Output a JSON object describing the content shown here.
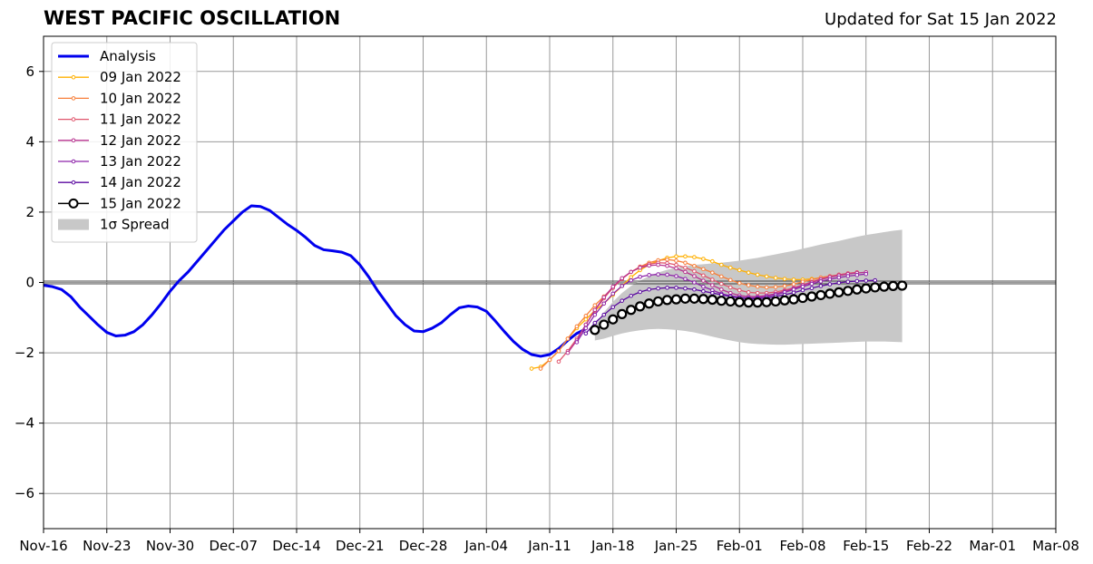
{
  "title": "WEST PACIFIC OSCILLATION",
  "updated": "Updated for Sat 15 Jan 2022",
  "chart_data": {
    "type": "line",
    "xlabel": "",
    "ylabel": "",
    "x_range": [
      "2021-11-16",
      "2022-03-08"
    ],
    "ylim": [
      -7,
      7
    ],
    "yticks": [
      -6,
      -4,
      -2,
      0,
      2,
      4,
      6
    ],
    "ytick_labels": [
      "−6",
      "−4",
      "−2",
      "0",
      "2",
      "4",
      "6"
    ],
    "xticks": [
      "2021-11-16",
      "2021-11-23",
      "2021-11-30",
      "2021-12-07",
      "2021-12-14",
      "2021-12-21",
      "2021-12-28",
      "2022-01-04",
      "2022-01-11",
      "2022-01-18",
      "2022-01-25",
      "2022-02-01",
      "2022-02-08",
      "2022-02-15",
      "2022-02-22",
      "2022-03-01",
      "2022-03-08"
    ],
    "xtick_labels": [
      "Nov-16",
      "Nov-23",
      "Nov-30",
      "Dec-07",
      "Dec-14",
      "Dec-21",
      "Dec-28",
      "Jan-04",
      "Jan-11",
      "Jan-18",
      "Jan-25",
      "Feb-01",
      "Feb-08",
      "Feb-15",
      "Feb-22",
      "Mar-01",
      "Mar-08"
    ],
    "grid": true,
    "legend_position": "top-left",
    "zero_line": 0,
    "analysis": {
      "name": "Analysis",
      "color": "#0000ee",
      "start": "2021-11-16",
      "values": [
        -0.08,
        -0.12,
        -0.2,
        -0.4,
        -0.7,
        -0.95,
        -1.2,
        -1.42,
        -1.52,
        -1.5,
        -1.4,
        -1.2,
        -0.92,
        -0.6,
        -0.25,
        0.05,
        0.3,
        0.6,
        0.9,
        1.2,
        1.5,
        1.75,
        2.0,
        2.18,
        2.16,
        2.05,
        1.85,
        1.65,
        1.48,
        1.28,
        1.05,
        0.93,
        0.9,
        0.86,
        0.76,
        0.5,
        0.15,
        -0.25,
        -0.6,
        -0.95,
        -1.2,
        -1.38,
        -1.4,
        -1.3,
        -1.15,
        -0.92,
        -0.72,
        -0.67,
        -0.7,
        -0.82,
        -1.1,
        -1.4,
        -1.68,
        -1.9,
        -2.05,
        -2.1,
        -2.05,
        -1.88,
        -1.65,
        -1.45,
        -1.32
      ]
    },
    "forecasts": [
      {
        "name": "09 Jan 2022",
        "color": "#ffb000",
        "start": "2022-01-09",
        "values": [
          -2.45,
          -2.4,
          -2.2,
          -1.95,
          -1.6,
          -1.3,
          -1.05,
          -0.8,
          -0.6,
          -0.35,
          -0.1,
          0.15,
          0.35,
          0.5,
          0.62,
          0.7,
          0.74,
          0.74,
          0.72,
          0.67,
          0.6,
          0.5,
          0.42,
          0.35,
          0.28,
          0.22,
          0.17,
          0.13,
          0.1,
          0.08,
          0.08,
          0.1,
          0.13,
          0.16,
          0.2,
          0.24,
          0.28
        ]
      },
      {
        "name": "10 Jan 2022",
        "color": "#f77f3a",
        "start": "2022-01-10",
        "values": [
          -2.45,
          -2.2,
          -1.95,
          -1.6,
          -1.25,
          -0.95,
          -0.65,
          -0.4,
          -0.15,
          0.1,
          0.3,
          0.45,
          0.56,
          0.63,
          0.65,
          0.62,
          0.56,
          0.47,
          0.38,
          0.28,
          0.17,
          0.07,
          -0.02,
          -0.08,
          -0.12,
          -0.14,
          -0.13,
          -0.1,
          -0.05,
          0.02,
          0.08,
          0.14,
          0.18,
          0.22,
          0.25,
          0.27
        ]
      },
      {
        "name": "11 Jan 2022",
        "color": "#e0566d",
        "start": "2022-01-12",
        "values": [
          -2.25,
          -1.95,
          -1.6,
          -1.2,
          -0.8,
          -0.45,
          -0.15,
          0.1,
          0.3,
          0.44,
          0.52,
          0.56,
          0.55,
          0.5,
          0.42,
          0.32,
          0.2,
          0.08,
          -0.04,
          -0.14,
          -0.22,
          -0.28,
          -0.3,
          -0.3,
          -0.27,
          -0.22,
          -0.15,
          -0.07,
          0.02,
          0.1,
          0.17,
          0.22,
          0.26,
          0.29
        ]
      },
      {
        "name": "12 Jan 2022",
        "color": "#b8328f",
        "start": "2022-01-13",
        "values": [
          -2.0,
          -1.65,
          -1.2,
          -0.78,
          -0.42,
          -0.12,
          0.12,
          0.3,
          0.42,
          0.48,
          0.5,
          0.47,
          0.4,
          0.3,
          0.18,
          0.05,
          -0.08,
          -0.2,
          -0.3,
          -0.37,
          -0.4,
          -0.4,
          -0.37,
          -0.32,
          -0.25,
          -0.17,
          -0.08,
          0.0,
          0.08,
          0.15,
          0.2,
          0.24,
          0.27,
          0.29
        ]
      },
      {
        "name": "13 Jan 2022",
        "color": "#8e24aa",
        "start": "2022-01-14",
        "values": [
          -1.7,
          -1.3,
          -0.92,
          -0.6,
          -0.32,
          -0.1,
          0.06,
          0.16,
          0.21,
          0.23,
          0.22,
          0.18,
          0.1,
          0.0,
          -0.12,
          -0.22,
          -0.32,
          -0.38,
          -0.42,
          -0.44,
          -0.43,
          -0.4,
          -0.35,
          -0.28,
          -0.2,
          -0.12,
          -0.04,
          0.03,
          0.09,
          0.14,
          0.18,
          0.21,
          0.24
        ]
      },
      {
        "name": "14 Jan 2022",
        "color": "#5b0aa0",
        "start": "2022-01-15",
        "values": [
          -1.45,
          -1.15,
          -0.92,
          -0.7,
          -0.52,
          -0.38,
          -0.27,
          -0.2,
          -0.17,
          -0.15,
          -0.15,
          -0.17,
          -0.2,
          -0.25,
          -0.3,
          -0.35,
          -0.4,
          -0.44,
          -0.46,
          -0.46,
          -0.44,
          -0.4,
          -0.35,
          -0.29,
          -0.22,
          -0.16,
          -0.1,
          -0.05,
          -0.01,
          0.02,
          0.04,
          0.05,
          0.06
        ]
      },
      {
        "name": "15 Jan 2022",
        "color": "#000000",
        "start": "2022-01-16",
        "values": [
          -1.35,
          -1.2,
          -1.05,
          -0.9,
          -0.78,
          -0.68,
          -0.6,
          -0.54,
          -0.5,
          -0.48,
          -0.46,
          -0.46,
          -0.47,
          -0.49,
          -0.52,
          -0.54,
          -0.56,
          -0.57,
          -0.57,
          -0.56,
          -0.54,
          -0.51,
          -0.48,
          -0.44,
          -0.4,
          -0.36,
          -0.32,
          -0.28,
          -0.24,
          -0.2,
          -0.17,
          -0.14,
          -0.12,
          -0.1,
          -0.09
        ]
      }
    ],
    "spread": {
      "name": "1σ Spread",
      "color": "#c8c8c8",
      "start": "2022-01-16",
      "upper": [
        -1.2,
        -0.85,
        -0.55,
        -0.3,
        -0.1,
        0.05,
        0.18,
        0.28,
        0.36,
        0.42,
        0.46,
        0.5,
        0.52,
        0.54,
        0.56,
        0.59,
        0.62,
        0.66,
        0.7,
        0.75,
        0.8,
        0.85,
        0.9,
        0.96,
        1.02,
        1.08,
        1.13,
        1.18,
        1.24,
        1.3,
        1.35,
        1.39,
        1.43,
        1.47,
        1.5
      ],
      "lower": [
        -1.65,
        -1.6,
        -1.52,
        -1.45,
        -1.4,
        -1.36,
        -1.33,
        -1.32,
        -1.33,
        -1.35,
        -1.38,
        -1.42,
        -1.48,
        -1.54,
        -1.6,
        -1.65,
        -1.7,
        -1.73,
        -1.75,
        -1.76,
        -1.77,
        -1.77,
        -1.76,
        -1.75,
        -1.74,
        -1.73,
        -1.72,
        -1.71,
        -1.7,
        -1.69,
        -1.68,
        -1.68,
        -1.68,
        -1.69,
        -1.7
      ]
    },
    "legend_entries": [
      "Analysis",
      "09 Jan 2022",
      "10 Jan 2022",
      "11 Jan 2022",
      "12 Jan 2022",
      "13 Jan 2022",
      "14 Jan 2022",
      "15 Jan 2022",
      "1σ Spread"
    ]
  }
}
